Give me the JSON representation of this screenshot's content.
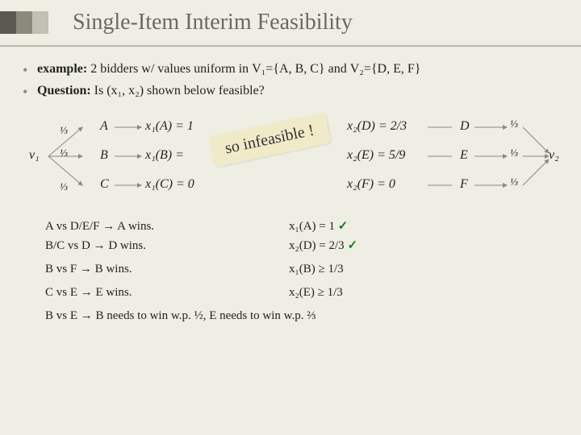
{
  "title": "Single-Item Interim Feasibility",
  "accent_colors": [
    "#5a5a50",
    "#8a8a7c",
    "#c0c0b4"
  ],
  "bullets": [
    {
      "label": "example:",
      "text_before": "2 bidders w/ values uniform in ",
      "v1": "V₁={A, B, C}",
      "mid": " and ",
      "v2": "V₂={D, E, F}"
    },
    {
      "label": "Question:",
      "text_before": "Is (x₁, x₂) shown below feasible?"
    }
  ],
  "diagram": {
    "v1_label": "v₁",
    "v2_label": "v₂",
    "frac": "⅓",
    "left_types": [
      "A",
      "B",
      "C"
    ],
    "right_types": [
      "D",
      "E",
      "F"
    ],
    "x1_eqs": [
      "x₁(A) = 1",
      "x₁(B) = 1",
      "x₁(C) = 0"
    ],
    "x2_eqs": [
      "x₂(D) = 2/3",
      "x₂(E) = 5/9",
      "x₂(F) = 0"
    ],
    "callout": "so infeasible !"
  },
  "checks": [
    {
      "left": "A vs D/E/F → A wins.",
      "right": "x₁(A) = 1 ✓"
    },
    {
      "left": "B/C vs D → D wins.",
      "right": "x₂(D) = 2/3 ✓"
    },
    {
      "left": "",
      "right": ""
    },
    {
      "left": "B vs F → B wins.",
      "right": "x₁(B) ≥ 1/3"
    },
    {
      "left": "",
      "right": ""
    },
    {
      "left": "C vs E → E wins.",
      "right": "x₂(E) ≥ 1/3"
    },
    {
      "left": "",
      "right": ""
    },
    {
      "left": "B vs E → B needs to win w.p. ½, E needs to win w.p. ⅔",
      "right": ""
    }
  ]
}
